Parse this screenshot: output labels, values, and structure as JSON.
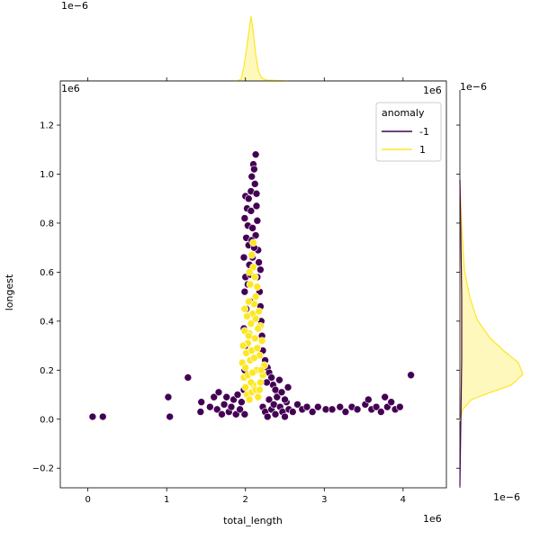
{
  "chart_data": {
    "type": "scatter",
    "xlabel": "total_length",
    "ylabel": "longest",
    "x_offset_text": "1e6",
    "y_offset_text": "1e6",
    "marginal_x_offset_text": "1e−6",
    "marginal_y_offset_text": "1e−6",
    "xlim": [
      -0.35,
      4.55
    ],
    "ylim": [
      -0.28,
      1.38
    ],
    "x_ticks": [
      0,
      1,
      2,
      3,
      4
    ],
    "x_tick_labels": [
      "0",
      "1",
      "2",
      "3",
      "4"
    ],
    "y_ticks": [
      -0.2,
      0.0,
      0.2,
      0.4,
      0.6,
      0.8,
      1.0,
      1.2
    ],
    "y_tick_labels": [
      "−0.2",
      "0.0",
      "0.2",
      "0.4",
      "0.6",
      "0.8",
      "1.0",
      "1.2"
    ],
    "legend": {
      "title": "anomaly",
      "placement": "top-right",
      "entries": [
        {
          "label": "-1",
          "color": "#440154"
        },
        {
          "label": "1",
          "color": "#fde725"
        }
      ]
    },
    "series": [
      {
        "name": "-1",
        "color": "#440154",
        "points": [
          [
            0.06,
            0.01
          ],
          [
            0.19,
            0.01
          ],
          [
            1.02,
            0.09
          ],
          [
            1.04,
            0.01
          ],
          [
            1.27,
            0.17
          ],
          [
            1.43,
            0.03
          ],
          [
            1.44,
            0.07
          ],
          [
            1.55,
            0.05
          ],
          [
            1.6,
            0.09
          ],
          [
            1.64,
            0.04
          ],
          [
            1.66,
            0.11
          ],
          [
            1.7,
            0.02
          ],
          [
            1.73,
            0.06
          ],
          [
            1.76,
            0.09
          ],
          [
            1.79,
            0.03
          ],
          [
            1.82,
            0.05
          ],
          [
            1.85,
            0.08
          ],
          [
            1.88,
            0.02
          ],
          [
            1.9,
            0.1
          ],
          [
            1.93,
            0.04
          ],
          [
            1.95,
            0.07
          ],
          [
            1.98,
            0.12
          ],
          [
            1.99,
            0.02
          ],
          [
            2.22,
            0.05
          ],
          [
            2.25,
            0.03
          ],
          [
            2.28,
            0.01
          ],
          [
            2.3,
            0.08
          ],
          [
            2.33,
            0.04
          ],
          [
            2.36,
            0.06
          ],
          [
            2.38,
            0.02
          ],
          [
            2.41,
            0.1
          ],
          [
            2.44,
            0.05
          ],
          [
            2.47,
            0.03
          ],
          [
            2.5,
            0.01
          ],
          [
            2.52,
            0.07
          ],
          [
            2.55,
            0.04
          ],
          [
            2.6,
            0.03
          ],
          [
            2.66,
            0.06
          ],
          [
            2.72,
            0.04
          ],
          [
            2.78,
            0.05
          ],
          [
            2.85,
            0.03
          ],
          [
            2.92,
            0.05
          ],
          [
            3.02,
            0.04
          ],
          [
            3.1,
            0.04
          ],
          [
            3.2,
            0.05
          ],
          [
            3.27,
            0.03
          ],
          [
            3.35,
            0.05
          ],
          [
            3.42,
            0.04
          ],
          [
            3.52,
            0.06
          ],
          [
            3.56,
            0.08
          ],
          [
            3.6,
            0.04
          ],
          [
            3.66,
            0.05
          ],
          [
            3.72,
            0.03
          ],
          [
            3.77,
            0.09
          ],
          [
            3.8,
            0.05
          ],
          [
            3.85,
            0.07
          ],
          [
            3.9,
            0.04
          ],
          [
            3.96,
            0.05
          ],
          [
            4.1,
            0.18
          ],
          [
            2.28,
            0.21
          ],
          [
            2.3,
            0.19
          ],
          [
            2.33,
            0.17
          ],
          [
            2.35,
            0.14
          ],
          [
            2.38,
            0.12
          ],
          [
            2.4,
            0.09
          ],
          [
            2.43,
            0.16
          ],
          [
            2.46,
            0.11
          ],
          [
            2.5,
            0.08
          ],
          [
            2.54,
            0.13
          ],
          [
            2.25,
            0.24
          ],
          [
            2.27,
            0.15
          ],
          [
            1.99,
            0.2
          ],
          [
            2.0,
            0.3
          ],
          [
            1.98,
            0.37
          ],
          [
            2.01,
            0.45
          ],
          [
            1.99,
            0.52
          ],
          [
            2.0,
            0.58
          ],
          [
            1.98,
            0.66
          ],
          [
            2.01,
            0.74
          ],
          [
            1.99,
            0.82
          ],
          [
            2.0,
            0.91
          ],
          [
            2.02,
            0.86
          ],
          [
            2.03,
            0.79
          ],
          [
            2.04,
            0.71
          ],
          [
            2.05,
            0.63
          ],
          [
            2.03,
            0.55
          ],
          [
            2.06,
            0.48
          ],
          [
            2.04,
            0.9
          ],
          [
            2.07,
            0.93
          ],
          [
            2.08,
            0.99
          ],
          [
            2.1,
            1.04
          ],
          [
            2.13,
            1.08
          ],
          [
            2.11,
            1.02
          ],
          [
            2.12,
            0.96
          ],
          [
            2.14,
            0.87
          ],
          [
            2.15,
            0.81
          ],
          [
            2.13,
            0.75
          ],
          [
            2.16,
            0.69
          ],
          [
            2.17,
            0.64
          ],
          [
            2.15,
            0.58
          ],
          [
            2.18,
            0.52
          ],
          [
            2.19,
            0.46
          ],
          [
            2.2,
            0.4
          ],
          [
            2.21,
            0.34
          ],
          [
            2.22,
            0.28
          ],
          [
            2.07,
            0.85
          ],
          [
            2.09,
            0.78
          ],
          [
            2.11,
            0.7
          ],
          [
            2.09,
            0.66
          ],
          [
            2.06,
            0.59
          ],
          [
            2.19,
            0.61
          ],
          [
            2.14,
            0.92
          ],
          [
            2.08,
            0.73
          ]
        ]
      },
      {
        "name": "1",
        "color": "#fde725",
        "points": [
          [
            1.96,
            0.23
          ],
          [
            1.98,
            0.17
          ],
          [
            2.0,
            0.13
          ],
          [
            2.02,
            0.1
          ],
          [
            2.05,
            0.08
          ],
          [
            2.08,
            0.11
          ],
          [
            2.1,
            0.14
          ],
          [
            2.13,
            0.12
          ],
          [
            2.16,
            0.09
          ],
          [
            2.19,
            0.15
          ],
          [
            2.22,
            0.18
          ],
          [
            2.24,
            0.22
          ],
          [
            2.01,
            0.27
          ],
          [
            2.03,
            0.31
          ],
          [
            2.05,
            0.35
          ],
          [
            2.07,
            0.39
          ],
          [
            2.09,
            0.43
          ],
          [
            2.11,
            0.47
          ],
          [
            2.13,
            0.5
          ],
          [
            2.15,
            0.54
          ],
          [
            2.12,
            0.58
          ],
          [
            2.1,
            0.62
          ],
          [
            2.08,
            0.67
          ],
          [
            2.1,
            0.72
          ],
          [
            2.06,
            0.55
          ],
          [
            2.04,
            0.48
          ],
          [
            2.02,
            0.42
          ],
          [
            1.99,
            0.36
          ],
          [
            1.97,
            0.3
          ],
          [
            2.17,
            0.44
          ],
          [
            2.19,
            0.38
          ],
          [
            2.21,
            0.32
          ],
          [
            2.18,
            0.26
          ],
          [
            2.14,
            0.2
          ],
          [
            2.06,
            0.24
          ],
          [
            2.08,
            0.28
          ],
          [
            2.12,
            0.33
          ],
          [
            2.16,
            0.37
          ],
          [
            2.03,
            0.18
          ],
          [
            2.0,
            0.21
          ],
          [
            2.11,
            0.25
          ],
          [
            2.09,
            0.19
          ],
          [
            2.15,
            0.29
          ],
          [
            2.05,
            0.6
          ],
          [
            2.13,
            0.41
          ],
          [
            1.99,
            0.45
          ],
          [
            2.2,
            0.2
          ],
          [
            2.07,
            0.15
          ],
          [
            2.18,
            0.12
          ],
          [
            2.04,
            0.34
          ]
        ]
      }
    ]
  }
}
